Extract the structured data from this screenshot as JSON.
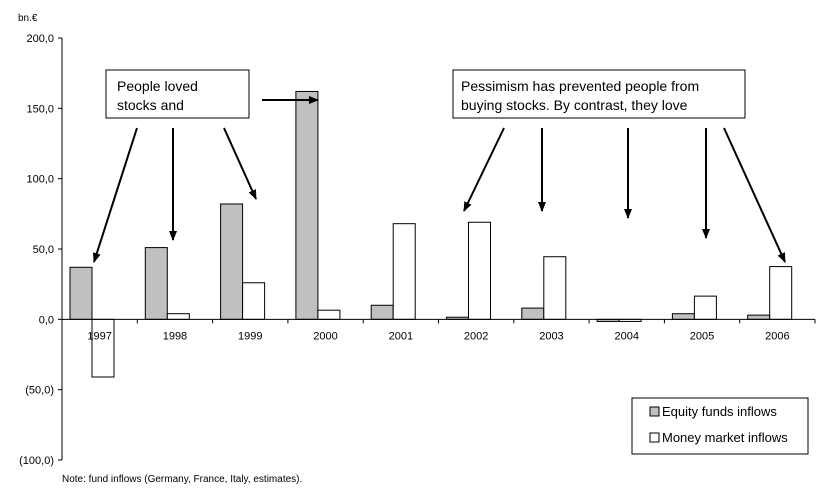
{
  "chart_data": {
    "type": "bar",
    "unit_label": "bn.€",
    "categories": [
      "1997",
      "1998",
      "1999",
      "2000",
      "2001",
      "2002",
      "2003",
      "2004",
      "2005",
      "2006"
    ],
    "series": [
      {
        "name": "Equity funds inflows",
        "color": "#c0c0c0",
        "values": [
          37,
          51,
          82,
          162,
          10,
          1.5,
          8,
          -1.5,
          4,
          3
        ]
      },
      {
        "name": "Money market inflows",
        "color": "#ffffff",
        "values": [
          -41,
          4,
          26,
          6.5,
          68,
          69,
          44.5,
          -1.5,
          16.5,
          37.5
        ]
      }
    ],
    "ylim": [
      -100,
      200
    ],
    "yticks": [
      "(100,0)",
      "(50,0)",
      "0,0",
      "50,0",
      "100,0",
      "150,0",
      "200,0"
    ],
    "ytick_values": [
      -100,
      -50,
      0,
      50,
      100,
      150,
      200
    ],
    "legend_placement": "bottom-right",
    "annotations": [
      {
        "lines": [
          "People loved",
          "stocks and"
        ]
      },
      {
        "lines": [
          "Pessimism has prevented people from",
          "buying stocks. By contrast, they love"
        ]
      }
    ]
  },
  "note": "Note: fund inflows (Germany, France, Italy, estimates)."
}
